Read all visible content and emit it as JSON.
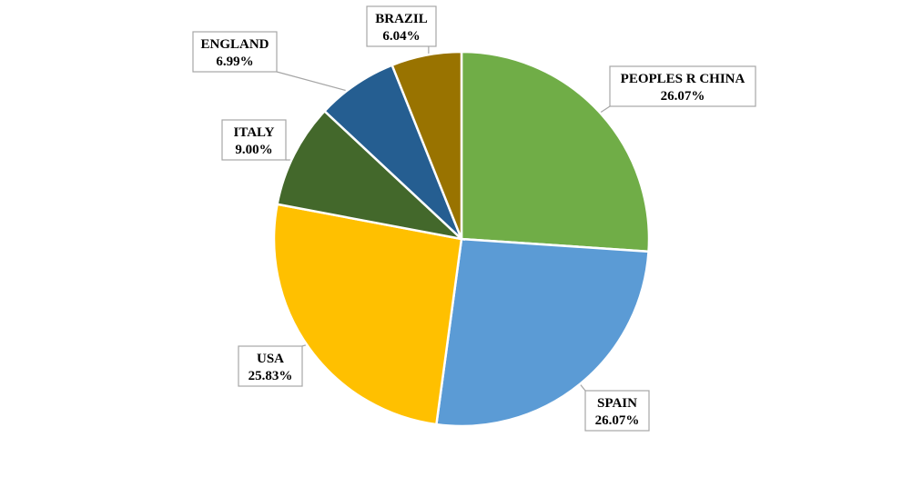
{
  "chart_data": {
    "type": "pie",
    "title": "",
    "slices": [
      {
        "label": "PEOPLES R CHINA",
        "value": 26.07,
        "display": "26.07%",
        "color": "#70ad47"
      },
      {
        "label": "SPAIN",
        "value": 26.07,
        "display": "26.07%",
        "color": "#5b9bd5"
      },
      {
        "label": "USA",
        "value": 25.83,
        "display": "25.83%",
        "color": "#ffc000"
      },
      {
        "label": "ITALY",
        "value": 9.0,
        "display": "9.00%",
        "color": "#43682b"
      },
      {
        "label": "ENGLAND",
        "value": 6.99,
        "display": "6.99%",
        "color": "#255e91"
      },
      {
        "label": "BRAZIL",
        "value": 6.04,
        "display": "6.04%",
        "color": "#997300"
      }
    ]
  }
}
